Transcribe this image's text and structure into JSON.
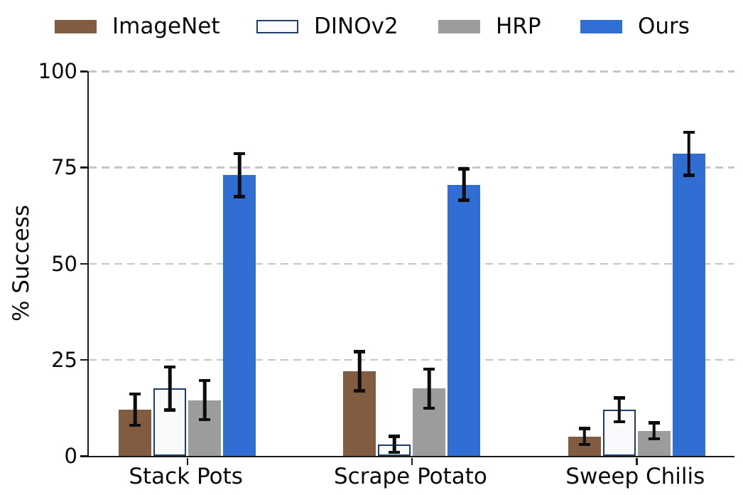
{
  "chart_data": {
    "type": "bar",
    "title": "",
    "xlabel": "",
    "ylabel": "% Success",
    "categories": [
      "Stack Pots",
      "Scrape Potato",
      "Sweep Chilis"
    ],
    "series": [
      {
        "name": "ImageNet",
        "color": "#825C40",
        "edge": "none",
        "values": [
          12,
          22,
          5
        ],
        "errors": [
          4.5,
          5.5,
          2.5
        ]
      },
      {
        "name": "DINOv2",
        "color": "#FAFAFD",
        "edge": "#1F3E66",
        "values": [
          17.5,
          3,
          12
        ],
        "errors": [
          6,
          2.5,
          3.5
        ]
      },
      {
        "name": "HRP",
        "color": "#9C9C9C",
        "edge": "none",
        "values": [
          14.5,
          17.5,
          6.5
        ],
        "errors": [
          5.5,
          5.5,
          2.5
        ]
      },
      {
        "name": "Ours",
        "color": "#316ED4",
        "edge": "none",
        "values": [
          73,
          70.5,
          78.5
        ],
        "errors": [
          6,
          4.5,
          6
        ]
      }
    ],
    "ylim": [
      0,
      100
    ],
    "yticks": [
      0,
      25,
      50,
      75,
      100
    ],
    "grid": "horizontal-dashed",
    "legend_position": "top-horizontal",
    "colors": {
      "axis": "#1a1a1a",
      "gridline": "#c6c6c6",
      "error_bar": "#0d0d0d",
      "text": "#0a0a0a",
      "background": "#ffffff"
    }
  }
}
